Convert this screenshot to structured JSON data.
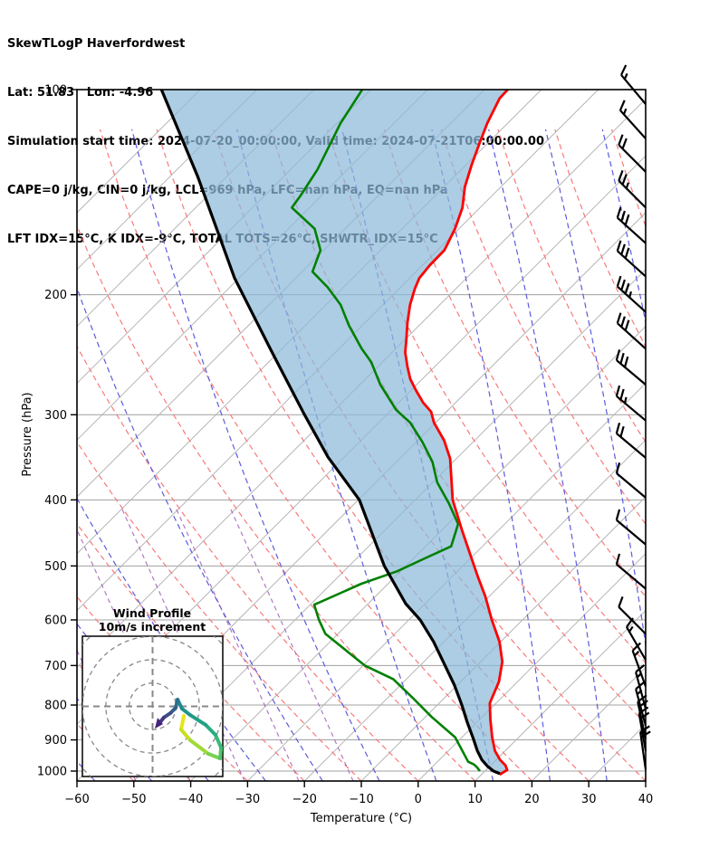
{
  "header": {
    "lines": [
      "SkewTLogP Haverfordwest",
      "Lat: 51.83   Lon: -4.96",
      "Simulation start time: 2024-07-20_00:00:00, Valid time: 2024-07-21T06:00:00.00",
      "CAPE=0 j/kg, CIN=0 j/kg, LCL=969 hPa, LFC=nan hPa, EQ=nan hPa",
      "LFT IDX=15°C, K IDX=-9°C, TOTAL TOTS=26°C, SHWTR_IDX=15°C"
    ]
  },
  "axes": {
    "x_label": "Temperature (°C)",
    "y_label": "Pressure (hPa)",
    "x_ticks": [
      -60,
      -50,
      -40,
      -30,
      -20,
      -10,
      0,
      10,
      20,
      30,
      40
    ],
    "y_ticks": [
      100,
      200,
      300,
      400,
      500,
      600,
      700,
      800,
      900,
      1000
    ],
    "x_range": [
      -60,
      40
    ],
    "p_top": 100,
    "p_bottom": 1035,
    "skew_deg": 45,
    "isotherm_step_C": 10
  },
  "colors": {
    "temperature": "#ff0000",
    "dewpoint": "#008000",
    "parcel": "#000000",
    "shade": "#8cbad8",
    "shade_opacity": 0.72,
    "dry_adiabat": "#f87a7a",
    "moist_adiabat": "#5c5cdb",
    "mixing_ratio": "#9b59b6",
    "isotherm": "#b5b5b5",
    "grid": "#a0a0a0",
    "barb": "#000000"
  },
  "chart_data": {
    "type": "line",
    "subtype": "skewt_logp_sounding",
    "title": "SkewTLogP Haverfordwest",
    "xlabel": "Temperature (°C)",
    "ylabel": "Pressure (hPa)",
    "temperature_C": [
      [
        100,
        -105.9
      ],
      [
        103,
        -105.8
      ],
      [
        112,
        -103.6
      ],
      [
        120,
        -101.4
      ],
      [
        129,
        -99.0
      ],
      [
        139,
        -96.3
      ],
      [
        149,
        -93.1
      ],
      [
        160,
        -90.7
      ],
      [
        172,
        -88.8
      ],
      [
        181,
        -88.7
      ],
      [
        189,
        -88.3
      ],
      [
        196,
        -87.2
      ],
      [
        207,
        -85.2
      ],
      [
        220,
        -82.5
      ],
      [
        232,
        -79.9
      ],
      [
        243,
        -77.7
      ],
      [
        255,
        -74.8
      ],
      [
        266,
        -72.1
      ],
      [
        276,
        -69.2
      ],
      [
        288,
        -65.7
      ],
      [
        297,
        -62.7
      ],
      [
        308,
        -60.3
      ],
      [
        327,
        -55.4
      ],
      [
        348,
        -51.1
      ],
      [
        400,
        -43.4
      ],
      [
        444,
        -36.3
      ],
      [
        488,
        -29.7
      ],
      [
        519,
        -25.4
      ],
      [
        554,
        -20.7
      ],
      [
        600,
        -15.4
      ],
      [
        646,
        -10.2
      ],
      [
        691,
        -6.2
      ],
      [
        739,
        -3.3
      ],
      [
        795,
        -1.1
      ],
      [
        839,
        1.8
      ],
      [
        892,
        5.3
      ],
      [
        934,
        8.2
      ],
      [
        963,
        10.7
      ],
      [
        981,
        12.6
      ],
      [
        996,
        13.7
      ],
      [
        1012,
        13.2
      ]
    ],
    "dewpoint_C": [
      [
        100,
        -131.5
      ],
      [
        112,
        -129.4
      ],
      [
        131,
        -125.3
      ],
      [
        143,
        -123.7
      ],
      [
        149,
        -123.1
      ],
      [
        160,
        -115.4
      ],
      [
        172,
        -110.6
      ],
      [
        185,
        -108.2
      ],
      [
        195,
        -102.8
      ],
      [
        207,
        -97.4
      ],
      [
        222,
        -92.3
      ],
      [
        240,
        -86.0
      ],
      [
        251,
        -82.0
      ],
      [
        271,
        -76.4
      ],
      [
        295,
        -69.2
      ],
      [
        308,
        -64.5
      ],
      [
        329,
        -58.9
      ],
      [
        352,
        -53.6
      ],
      [
        377,
        -49.2
      ],
      [
        405,
        -43.4
      ],
      [
        434,
        -38.2
      ],
      [
        468,
        -35.5
      ],
      [
        489,
        -38.2
      ],
      [
        509,
        -40.6
      ],
      [
        531,
        -44.7
      ],
      [
        570,
        -49.3
      ],
      [
        600,
        -45.8
      ],
      [
        629,
        -42.2
      ],
      [
        700,
        -29.7
      ],
      [
        733,
        -22.3
      ],
      [
        783,
        -15.3
      ],
      [
        833,
        -8.9
      ],
      [
        892,
        -1.2
      ],
      [
        969,
        5.4
      ],
      [
        978,
        6.9
      ],
      [
        988,
        8.0
      ],
      [
        1000,
        9.1
      ]
    ],
    "parcel_C": [
      [
        100,
        -166.8
      ],
      [
        134,
        -145.2
      ],
      [
        189,
        -120.8
      ],
      [
        243,
        -101.1
      ],
      [
        299,
        -84.7
      ],
      [
        346,
        -72.9
      ],
      [
        400,
        -59.8
      ],
      [
        500,
        -43.8
      ],
      [
        568,
        -33.4
      ],
      [
        600,
        -28.0
      ],
      [
        646,
        -21.8
      ],
      [
        700,
        -15.6
      ],
      [
        748,
        -10.5
      ],
      [
        800,
        -5.7
      ],
      [
        848,
        -1.7
      ],
      [
        897,
        2.3
      ],
      [
        934,
        5.1
      ],
      [
        963,
        7.5
      ],
      [
        984,
        9.6
      ],
      [
        1000,
        11.5
      ],
      [
        1009,
        13.1
      ]
    ],
    "shaded_region": "between parcel curve and temperature curve",
    "wind_barbs": [
      {
        "p": 105,
        "rot": -40,
        "full": 1,
        "half": 1,
        "speed": 15
      },
      {
        "p": 118,
        "rot": -42,
        "full": 1,
        "half": 1,
        "speed": 15
      },
      {
        "p": 132,
        "rot": -45,
        "full": 2,
        "half": 0,
        "speed": 20
      },
      {
        "p": 149,
        "rot": -45,
        "full": 2,
        "half": 1,
        "speed": 25
      },
      {
        "p": 168,
        "rot": -48,
        "full": 3,
        "half": 0,
        "speed": 30
      },
      {
        "p": 188,
        "rot": -48,
        "full": 3,
        "half": 0,
        "speed": 30
      },
      {
        "p": 212,
        "rot": -48,
        "full": 3,
        "half": 1,
        "speed": 35
      },
      {
        "p": 240,
        "rot": -48,
        "full": 3,
        "half": 0,
        "speed": 30
      },
      {
        "p": 271,
        "rot": -50,
        "full": 3,
        "half": 0,
        "speed": 30
      },
      {
        "p": 306,
        "rot": -50,
        "full": 2,
        "half": 1,
        "speed": 25
      },
      {
        "p": 347,
        "rot": -50,
        "full": 2,
        "half": 0,
        "speed": 20
      },
      {
        "p": 397,
        "rot": -50,
        "full": 1,
        "half": 0,
        "speed": 10
      },
      {
        "p": 465,
        "rot": -50,
        "full": 1,
        "half": 0,
        "speed": 10
      },
      {
        "p": 540,
        "rot": -50,
        "full": 1,
        "half": 0,
        "speed": 10
      },
      {
        "p": 629,
        "rot": -45,
        "full": 1,
        "half": 0,
        "speed": 10
      },
      {
        "p": 687,
        "rot": -30,
        "full": 1,
        "half": 1,
        "speed": 15
      },
      {
        "p": 751,
        "rot": -20,
        "full": 1,
        "half": 1,
        "speed": 15
      },
      {
        "p": 810,
        "rot": -15,
        "full": 1,
        "half": 1,
        "speed": 15
      },
      {
        "p": 858,
        "rot": -15,
        "full": 1,
        "half": 1,
        "speed": 15
      },
      {
        "p": 897,
        "rot": -12,
        "full": 2,
        "half": 0,
        "speed": 20
      },
      {
        "p": 934,
        "rot": -10,
        "full": 2,
        "half": 0,
        "speed": 20
      },
      {
        "p": 995,
        "rot": -8,
        "full": 2,
        "half": 0,
        "speed": 20
      }
    ]
  },
  "inset": {
    "title": "Wind Profile",
    "subtitle": "10m/s increment",
    "ring_increment_ms": 10,
    "trace_uv_ms": [
      {
        "u": 13.4,
        "v": -4.1
      },
      {
        "u": 12.2,
        "v": -9.9
      },
      {
        "u": 16.1,
        "v": -14.5
      },
      {
        "u": 23.8,
        "v": -20.3
      },
      {
        "u": 28.9,
        "v": -22.3
      },
      {
        "u": 29.3,
        "v": -17.6
      },
      {
        "u": 26.9,
        "v": -12.2
      },
      {
        "u": 22.7,
        "v": -7.9
      },
      {
        "u": 16.1,
        "v": -3.7
      },
      {
        "u": 12.6,
        "v": -1.0
      },
      {
        "u": 10.7,
        "v": 2.9
      },
      {
        "u": 9.9,
        "v": -0.6
      },
      {
        "u": 7.6,
        "v": -2.9
      },
      {
        "u": 4.8,
        "v": -4.8
      },
      {
        "u": 2.9,
        "v": -7.2
      }
    ],
    "trace_colors": [
      "#e8e419",
      "#c8e020",
      "#a0da39",
      "#7ad151",
      "#54c568",
      "#38b977",
      "#27ad81",
      "#21a185",
      "#1f958b",
      "#21898e",
      "#2c728e",
      "#355f8d",
      "#3d4d8a",
      "#453882",
      "#46237e"
    ]
  }
}
